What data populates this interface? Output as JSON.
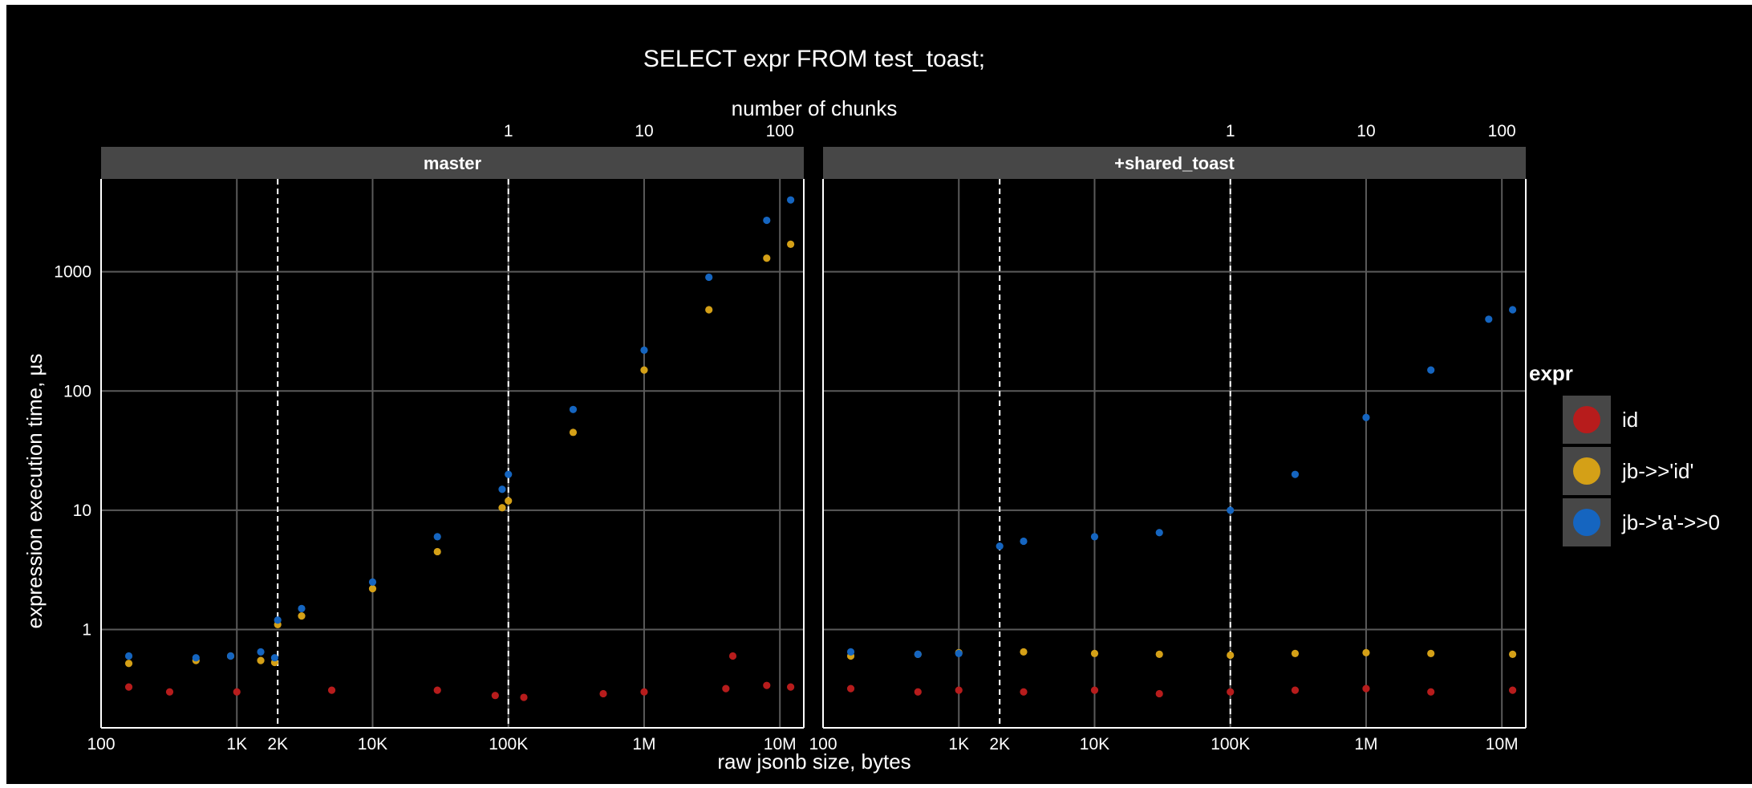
{
  "theme": {
    "page_bg": "#ffffff",
    "plot_bg": "#000000",
    "panel_border": "#ffffff",
    "grid": "#5a5a5a",
    "strip_bg": "#474747",
    "text": "#ffffff",
    "vline": "#ffffff"
  },
  "chart_data": {
    "type": "scatter",
    "title": "SELECT expr FROM test_toast;",
    "xlabel": "raw jsonb size, bytes",
    "ylabel": "expression execution time, µs",
    "x2label": "number of chunks",
    "x_scale": "log",
    "y_scale": "log",
    "xlim": [
      100,
      15000000
    ],
    "ylim": [
      0.15,
      6000
    ],
    "x_ticks": [
      100,
      1000,
      2000,
      10000,
      100000,
      1000000,
      10000000
    ],
    "x_tick_labels": [
      "100",
      "1K",
      "2K",
      "10K",
      "100K",
      "1M",
      "10M"
    ],
    "x2_ticks": [
      100000,
      1000000,
      10000000
    ],
    "x2_tick_labels": [
      "1",
      "10",
      "100"
    ],
    "y_ticks": [
      1,
      10,
      100,
      1000
    ],
    "y_tick_labels": [
      "1",
      "10",
      "100",
      "1000"
    ],
    "reference_lines_x": [
      2000,
      100000
    ],
    "grid": true,
    "legend_title": "expr",
    "legend_position": "right",
    "series_meta": [
      {
        "name": "id",
        "color": "#b71c1c"
      },
      {
        "name": "jb->>'id'",
        "color": "#d4a017"
      },
      {
        "name": "jb->'a'->>0",
        "color": "#1565c0"
      }
    ],
    "panels": [
      {
        "strip_label": "master",
        "series": [
          {
            "name": "id",
            "x": [
              160,
              320,
              1000,
              5000,
              30000,
              80000,
              130000,
              500000,
              1000000,
              4000000,
              4500000,
              8000000,
              12000000
            ],
            "y": [
              0.33,
              0.3,
              0.3,
              0.31,
              0.31,
              0.28,
              0.27,
              0.29,
              0.3,
              0.32,
              0.6,
              0.34,
              0.33
            ]
          },
          {
            "name": "jb->>'id'",
            "x": [
              160,
              500,
              900,
              1500,
              1900,
              2000,
              3000,
              10000,
              30000,
              90000,
              100000,
              300000,
              1000000,
              3000000,
              8000000,
              12000000
            ],
            "y": [
              0.52,
              0.55,
              0.6,
              0.55,
              0.53,
              1.1,
              1.3,
              2.2,
              4.5,
              10.5,
              12,
              45,
              150,
              480,
              1300,
              1700
            ]
          },
          {
            "name": "jb->'a'->>0",
            "x": [
              160,
              500,
              900,
              1500,
              1900,
              2000,
              3000,
              10000,
              30000,
              90000,
              100000,
              300000,
              1000000,
              3000000,
              8000000,
              12000000
            ],
            "y": [
              0.6,
              0.58,
              0.6,
              0.65,
              0.58,
              1.2,
              1.5,
              2.5,
              6,
              15,
              20,
              70,
              220,
              900,
              2700,
              4000
            ]
          }
        ]
      },
      {
        "strip_label": "+shared_toast",
        "series": [
          {
            "name": "id",
            "x": [
              160,
              500,
              1000,
              3000,
              10000,
              30000,
              100000,
              300000,
              1000000,
              3000000,
              12000000
            ],
            "y": [
              0.32,
              0.3,
              0.31,
              0.3,
              0.31,
              0.29,
              0.3,
              0.31,
              0.32,
              0.3,
              0.31
            ]
          },
          {
            "name": "jb->>'id'",
            "x": [
              160,
              500,
              1000,
              3000,
              10000,
              30000,
              100000,
              300000,
              1000000,
              3000000,
              12000000
            ],
            "y": [
              0.6,
              0.62,
              0.64,
              0.65,
              0.63,
              0.62,
              0.61,
              0.63,
              0.64,
              0.63,
              0.62
            ]
          },
          {
            "name": "jb->'a'->>0",
            "x": [
              160,
              500,
              1000,
              2000,
              3000,
              10000,
              30000,
              100000,
              300000,
              1000000,
              3000000,
              8000000,
              12000000
            ],
            "y": [
              0.65,
              0.62,
              0.63,
              5,
              5.5,
              6,
              6.5,
              10,
              20,
              60,
              150,
              400,
              480
            ]
          }
        ]
      }
    ]
  }
}
